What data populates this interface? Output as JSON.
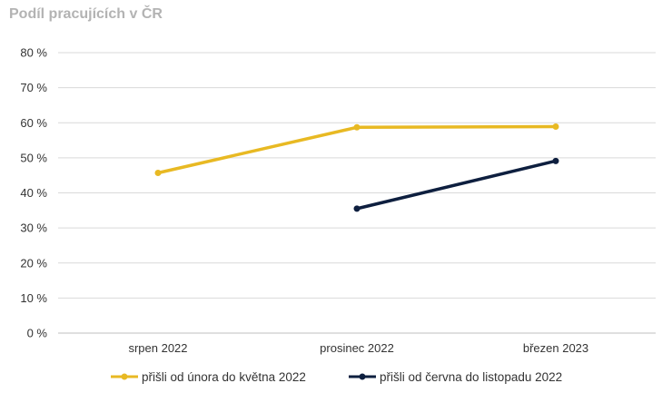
{
  "chart_data": {
    "type": "line",
    "title": "Podíl pracujících v ČR",
    "categories": [
      "srpen 2022",
      "prosinec 2022",
      "březen 2023"
    ],
    "ylim": [
      0,
      80
    ],
    "yticks": [
      0,
      10,
      20,
      30,
      40,
      50,
      60,
      70,
      80
    ],
    "ytick_labels": [
      "0 %",
      "10 %",
      "20 %",
      "30 %",
      "40 %",
      "50 %",
      "60 %",
      "70 %",
      "80 %"
    ],
    "grid": true,
    "legend_position": "bottom",
    "series": [
      {
        "name": "přišli od února do května 2022",
        "values": [
          45.7,
          58.7,
          58.9
        ],
        "color": "#e8b923"
      },
      {
        "name": "přišli od června do listopadu 2022",
        "values": [
          null,
          35.5,
          49.1
        ],
        "color": "#0e1f3f"
      }
    ]
  }
}
